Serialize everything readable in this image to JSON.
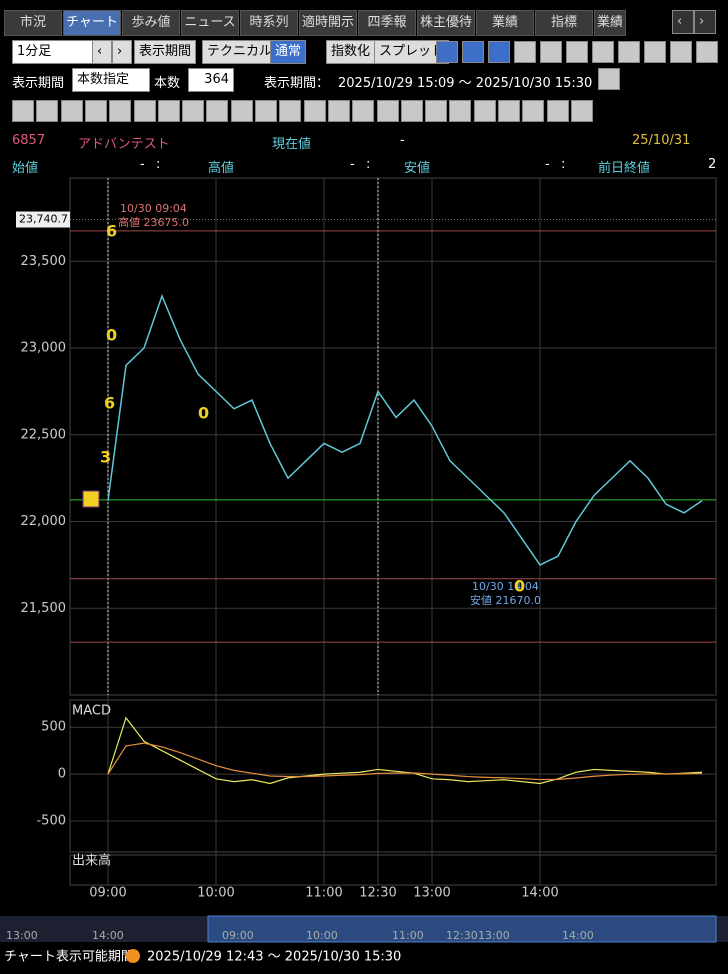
{
  "tabs": [
    "市況",
    "チャート",
    "歩み値",
    "ニュース",
    "時系列",
    "適時開示",
    "四季報",
    "株主優待",
    "業績",
    "指標",
    "業績"
  ],
  "toolbar": {
    "interval": "1分足",
    "buttons": [
      "表示期間",
      "テクニカル",
      "通常",
      "指数化",
      "スプレッド"
    ]
  },
  "period_bar": {
    "label": "表示期間",
    "mode": "本数指定",
    "count_label": "本数",
    "count": 364,
    "range_label": "表示期間：",
    "range": "2025/10/29 15:09 ～ 2025/10/30 15:30"
  },
  "quote": {
    "code": "6857",
    "name": "アドバンテスト",
    "current_label": "現在値",
    "current": "-",
    "date": "25/10/31",
    "fields": [
      {
        "label": "始値",
        "value": "-",
        "time": ":"
      },
      {
        "label": "高値",
        "value": "-",
        "time": ":"
      },
      {
        "label": "安値",
        "value": "-",
        "time": ":"
      },
      {
        "label": "前日終値",
        "value": "2"
      }
    ]
  },
  "chart_data": [
    {
      "type": "line",
      "color": "#5fc8d8",
      "categories": [
        "09:00",
        null,
        null,
        null,
        null,
        null,
        "10:00",
        null,
        null,
        null,
        null,
        null,
        "11:00",
        null,
        null,
        "12:30",
        null,
        null,
        "13:00",
        null,
        null,
        null,
        null,
        null,
        "14:00",
        null,
        null,
        null,
        null,
        null,
        null,
        null,
        null,
        null
      ],
      "values": [
        22120,
        22900,
        23000,
        23300,
        23050,
        22850,
        22750,
        22650,
        22700,
        22450,
        22250,
        22350,
        22450,
        22400,
        22450,
        22750,
        22600,
        22700,
        22550,
        22350,
        22250,
        22150,
        22050,
        21900,
        21750,
        21800,
        22000,
        22150,
        22250,
        22350,
        22250,
        22100,
        22050,
        22120
      ],
      "ylim": [
        21000,
        23980
      ],
      "yticks": [
        {
          "value": 23500,
          "label": "23,500"
        },
        {
          "value": 23000,
          "label": "23,000"
        },
        {
          "value": 22500,
          "label": "22,500"
        },
        {
          "value": 22000,
          "label": "22,000"
        },
        {
          "value": 21500,
          "label": "21,500"
        }
      ],
      "hlines": [
        {
          "value": 23675,
          "color": "#a04848"
        },
        {
          "value": 22125,
          "color": "#30c030"
        },
        {
          "value": 21670,
          "color": "#a04848"
        },
        {
          "value": 21305,
          "color": "#a04848"
        }
      ],
      "cursor_label": {
        "value": 23740.7,
        "label": "23,740.7"
      },
      "annotations": {
        "high_time": "10/30 09:04",
        "high": "高値 23675.0",
        "low_time": "10/30 14:04",
        "low": "安値 21670.0",
        "markers": [
          "6",
          "0",
          "6",
          "0",
          "3",
          "0"
        ]
      }
    },
    {
      "type": "line",
      "title": "MACD",
      "ylim": [
        -830,
        790
      ],
      "yticks": [
        500,
        0,
        -500
      ],
      "series": [
        {
          "color": "#e8e860",
          "values": [
            0,
            600,
            350,
            250,
            150,
            50,
            -50,
            -80,
            -60,
            -100,
            -40,
            -20,
            0,
            10,
            20,
            50,
            30,
            10,
            -50,
            -60,
            -80,
            -70,
            -60,
            -80,
            -100,
            -50,
            20,
            50,
            40,
            30,
            20,
            0,
            10,
            20
          ]
        },
        {
          "color": "#e89040",
          "values": [
            0,
            300,
            330,
            290,
            230,
            160,
            90,
            40,
            10,
            -20,
            -25,
            -25,
            -20,
            -12,
            -5,
            8,
            12,
            12,
            0,
            -12,
            -26,
            -35,
            -40,
            -48,
            -58,
            -56,
            -41,
            -23,
            -10,
            -2,
            2,
            2,
            4,
            7
          ]
        }
      ]
    }
  ],
  "volume_panel": {
    "title": "出来高"
  },
  "scroll": {
    "labels": [
      "13:00",
      "14:00",
      "09:00",
      "10:00",
      "11:00",
      "12:30",
      "13:00",
      "14:00"
    ]
  },
  "footer": {
    "label": "チャート表示可能期間",
    "range": "2025/10/29 12:43 ～ 2025/10/30 15:30"
  }
}
